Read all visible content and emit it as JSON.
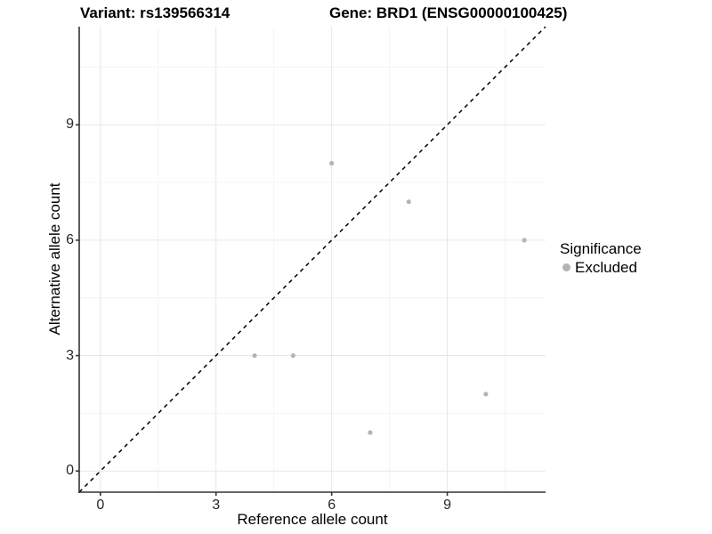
{
  "titles": {
    "variant": "Variant: rs139566314",
    "gene": "Gene: BRD1 (ENSG00000100425)"
  },
  "chart_data": {
    "type": "scatter",
    "xlabel": "Reference allele count",
    "ylabel": "Alternative allele count",
    "xlim": [
      -0.55,
      11.55
    ],
    "ylim": [
      -0.55,
      11.55
    ],
    "x_ticks": [
      0,
      3,
      6,
      9
    ],
    "y_ticks": [
      0,
      3,
      6,
      9
    ],
    "x_tick_labels": [
      "0",
      "3",
      "6",
      "9"
    ],
    "y_tick_labels": [
      "0",
      "3",
      "6",
      "9"
    ],
    "minor_gridlines": [
      1.5,
      4.5,
      7.5,
      10.5
    ],
    "grid": "on",
    "identity_line": {
      "slope": 1,
      "intercept": 0,
      "style": "dashed",
      "color": "#000000"
    },
    "series": [
      {
        "name": "Excluded",
        "color": "#b4b4b4",
        "points": [
          {
            "x": 6,
            "y": 8
          },
          {
            "x": 8,
            "y": 7
          },
          {
            "x": 11,
            "y": 6
          },
          {
            "x": 4,
            "y": 3
          },
          {
            "x": 5,
            "y": 3
          },
          {
            "x": 10,
            "y": 2
          },
          {
            "x": 7,
            "y": 1
          }
        ]
      }
    ],
    "legend": {
      "title": "Significance",
      "position": "right",
      "items": [
        {
          "label": "Excluded",
          "color": "#b4b4b4"
        }
      ]
    }
  },
  "style": {
    "axis_color": "#333333",
    "tick_label_color": "#262626",
    "grid_major_color": "#e7e7e7",
    "grid_minor_color": "#f4f4f4",
    "point_radius": 2.6,
    "background": "#ffffff"
  }
}
